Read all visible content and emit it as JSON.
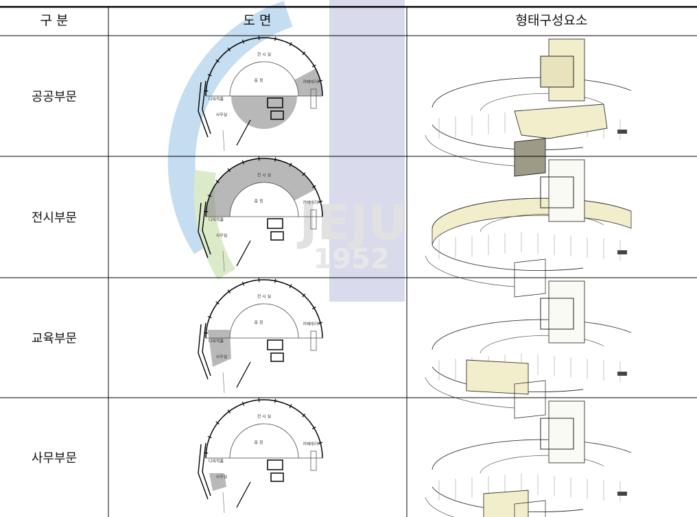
{
  "watermark": {
    "text": "JEJU",
    "year": "1952"
  },
  "table": {
    "header": [
      "구 분",
      "도 면",
      "형태구성요소"
    ],
    "rows": [
      "공공부문",
      "전시부문",
      "교육부문",
      "사무부문"
    ]
  },
  "plan_labels": [
    "전 시 실",
    "중 정",
    "카페테리아",
    "다목적홀",
    "사무실"
  ]
}
